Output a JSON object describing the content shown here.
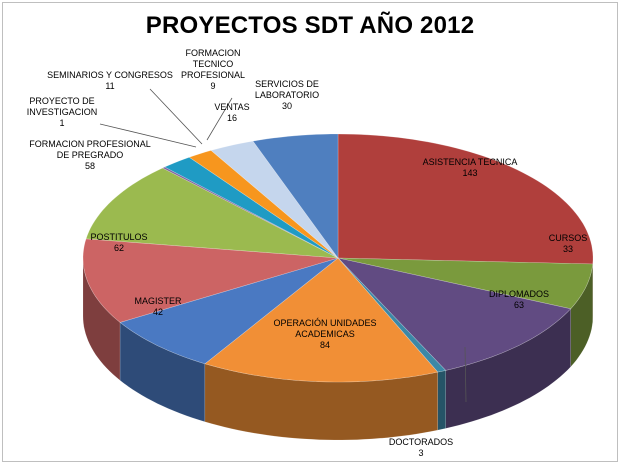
{
  "chart_data": {
    "type": "pie",
    "title": "PROYECTOS SDT AÑO 2012",
    "slices": [
      {
        "label": "ASISTENCIA TECNICA",
        "value": 143,
        "color": "#b03f3c",
        "label_lines": [
          "ASISTENCIA TECNICA",
          "143"
        ]
      },
      {
        "label": "CURSOS",
        "value": 33,
        "color": "#7a9a3d",
        "label_lines": [
          "CURSOS",
          "33"
        ]
      },
      {
        "label": "DIPLOMADOS",
        "value": 63,
        "color": "#614b82",
        "label_lines": [
          "DIPLOMADOS",
          "63"
        ]
      },
      {
        "label": "DOCTORADOS",
        "value": 3,
        "color": "#3c88a6",
        "label_lines": [
          "DOCTORADOS",
          "3"
        ]
      },
      {
        "label": "OPERACIÓN UNIDADES ACADEMICAS",
        "value": 84,
        "color": "#f18f36",
        "label_lines": [
          "OPERACIÓN UNIDADES",
          "ACADEMICAS",
          "84"
        ]
      },
      {
        "label": "MAGISTER",
        "value": 42,
        "color": "#4a79c2",
        "label_lines": [
          "MAGISTER",
          "42"
        ]
      },
      {
        "label": "POSTITULOS",
        "value": 62,
        "color": "#cc6464",
        "label_lines": [
          "POSTITULOS",
          "62"
        ]
      },
      {
        "label": "FORMACION PROFESIONAL DE PREGRADO",
        "value": 58,
        "color": "#9bba4f",
        "label_lines": [
          "FORMACION PROFESIONAL",
          "DE PREGRADO",
          "58"
        ]
      },
      {
        "label": "PROYECTO DE INVESTIGACION",
        "value": 1,
        "color": "#8064a2",
        "label_lines": [
          "PROYECTO DE",
          "INVESTIGACION",
          "1"
        ]
      },
      {
        "label": "SEMINARIOS Y CONGRESOS",
        "value": 11,
        "color": "#1f9bc4",
        "label_lines": [
          "SEMINARIOS Y CONGRESOS",
          "11"
        ]
      },
      {
        "label": "FORMACION TECNICO PROFESIONAL",
        "value": 9,
        "color": "#f7961e",
        "label_lines": [
          "FORMACION",
          "TECNICO",
          "PROFESIONAL",
          "9"
        ]
      },
      {
        "label": "VENTAS",
        "value": 16,
        "color": "#c5d6ed",
        "label_lines": [
          "VENTAS",
          "16"
        ]
      },
      {
        "label": "SERVICIOS DE LABORATORIO",
        "value": 30,
        "color": "#4f7fbf",
        "label_lines": [
          "SERVICIOS DE",
          "LABORATORIO",
          "30"
        ]
      }
    ],
    "style": "3d-pie",
    "legend": "none"
  }
}
